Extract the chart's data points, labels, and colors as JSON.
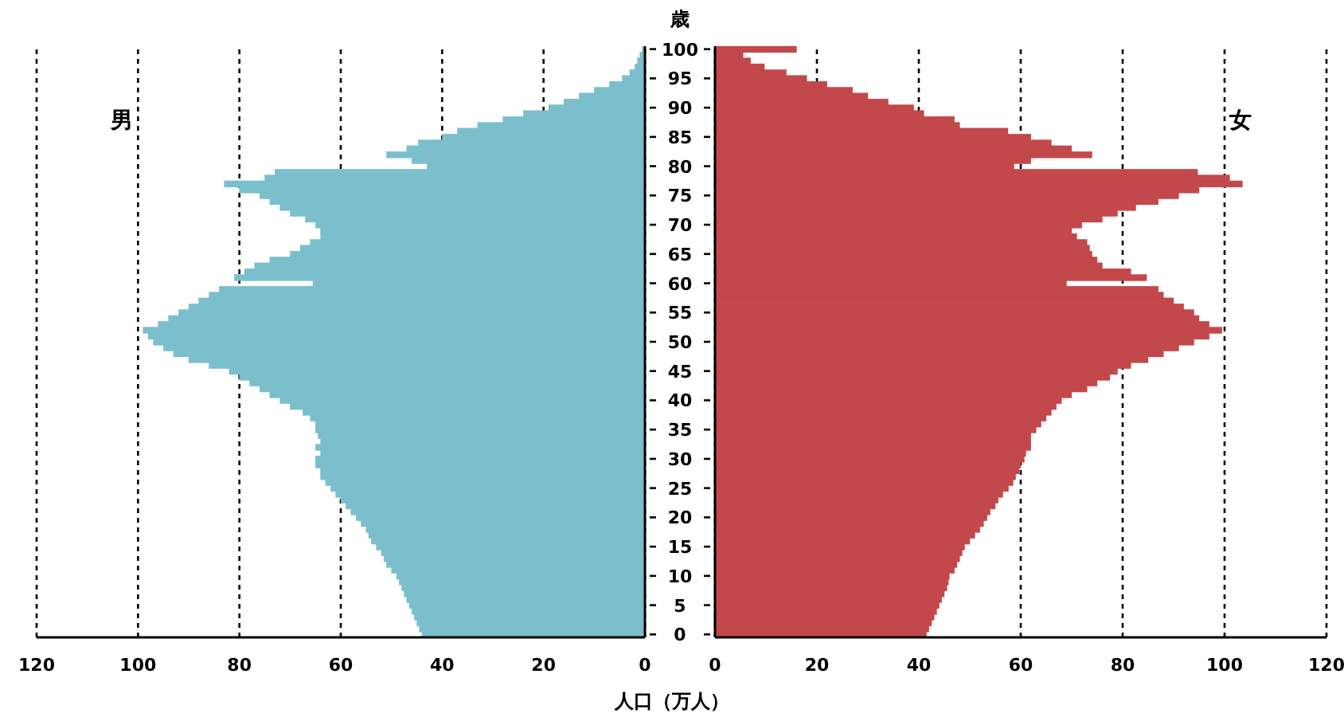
{
  "chart_data": [
    {
      "type": "bar",
      "orientation": "horizontal",
      "title": "男",
      "grid": "x",
      "tick_labels": "x",
      "categories": [
        "100",
        null,
        null,
        null,
        null,
        "95",
        null,
        null,
        null,
        null,
        "90",
        null,
        null,
        null,
        null,
        "85",
        null,
        null,
        null,
        null,
        "80",
        null,
        null,
        null,
        null,
        "75",
        null,
        null,
        null,
        null,
        "70",
        null,
        null,
        null,
        null,
        "65",
        null,
        null,
        null,
        null,
        "60",
        null,
        null,
        null,
        null,
        "55",
        null,
        null,
        null,
        null,
        "50",
        null,
        null,
        null,
        null,
        "45",
        null,
        null,
        null,
        null,
        "40",
        null,
        null,
        null,
        null,
        "35",
        null,
        null,
        null,
        null,
        "30",
        null,
        null,
        null,
        null,
        "25",
        null,
        null,
        null,
        null,
        "20",
        null,
        null,
        null,
        null,
        "15",
        null,
        null,
        null,
        null,
        "10",
        null,
        null,
        null,
        null,
        "5",
        null,
        null,
        null,
        null,
        "0"
      ],
      "series": [
        {
          "color": "#7bbfcc",
          "values": [
            0.5,
            1,
            1.5,
            2,
            3,
            4.5,
            7,
            10,
            13,
            16,
            19,
            24,
            28,
            33,
            37,
            40,
            44.7,
            47,
            51,
            46,
            43,
            73,
            75,
            83,
            80,
            76,
            74,
            72,
            70,
            67,
            65,
            64,
            64,
            66,
            68,
            70,
            74,
            77,
            79,
            81,
            65.5,
            84,
            86,
            88,
            90,
            92,
            94,
            96,
            99,
            98,
            97,
            95,
            93,
            90,
            86,
            82,
            80,
            78,
            76,
            74,
            72,
            70,
            67.5,
            66,
            65,
            65,
            64.5,
            64,
            65,
            64,
            65,
            65,
            64,
            64,
            63,
            62,
            61,
            60,
            59,
            58,
            57,
            56,
            55,
            54.5,
            54,
            53,
            52,
            51.5,
            51,
            50,
            49,
            48.5,
            48,
            47.5,
            47,
            46.5,
            46,
            45.5,
            45,
            44.5,
            44
          ]
        }
      ],
      "xlim": [
        120,
        0
      ],
      "xticks": [
        120,
        100,
        80,
        60,
        40,
        20,
        0
      ]
    },
    {
      "type": "bar",
      "orientation": "horizontal",
      "title": "女",
      "grid": "x",
      "ylabel": "歳",
      "xlabel": "人口（万人）",
      "categories": [
        "100",
        null,
        null,
        null,
        null,
        "95",
        null,
        null,
        null,
        null,
        "90",
        null,
        null,
        null,
        null,
        "85",
        null,
        null,
        null,
        null,
        "80",
        null,
        null,
        null,
        null,
        "75",
        null,
        null,
        null,
        null,
        "70",
        null,
        null,
        null,
        null,
        "65",
        null,
        null,
        null,
        null,
        "60",
        null,
        null,
        null,
        null,
        "55",
        null,
        null,
        null,
        null,
        "50",
        null,
        null,
        null,
        null,
        "45",
        null,
        null,
        null,
        null,
        "40",
        null,
        null,
        null,
        null,
        "35",
        null,
        null,
        null,
        null,
        "30",
        null,
        null,
        null,
        null,
        "25",
        null,
        null,
        null,
        null,
        "20",
        null,
        null,
        null,
        null,
        "15",
        null,
        null,
        null,
        null,
        "10",
        null,
        null,
        null,
        null,
        "5",
        null,
        null,
        null,
        null,
        "0"
      ],
      "series": [
        {
          "color": "#c2484b",
          "values": [
            16,
            5.5,
            7,
            9.7,
            14,
            18,
            22,
            27,
            30,
            34,
            39,
            41,
            47,
            48,
            57.5,
            62,
            66,
            70,
            74,
            62,
            58.7,
            94.7,
            101,
            103.5,
            95,
            91,
            87,
            82.6,
            79,
            76,
            72,
            70,
            71,
            73,
            73.5,
            74,
            75,
            76,
            81.6,
            84.7,
            69,
            87,
            88,
            90,
            92,
            94,
            95,
            97,
            99.5,
            97,
            94,
            91,
            88,
            85,
            81.6,
            79,
            77.5,
            75,
            73,
            70,
            68,
            67,
            66,
            65,
            64,
            63,
            62,
            62,
            62,
            61,
            60.7,
            60,
            59.7,
            59,
            58.5,
            57.6,
            56.5,
            55.6,
            55,
            54,
            53.4,
            52.7,
            52,
            51,
            50,
            49,
            48.5,
            48,
            47.5,
            47,
            46,
            45.8,
            45.5,
            45,
            44.5,
            44,
            43.5,
            43,
            42.5,
            42,
            41.5
          ]
        }
      ],
      "xlim": [
        0,
        120
      ],
      "xticks": [
        0,
        20,
        40,
        60,
        80,
        100,
        120
      ]
    }
  ]
}
